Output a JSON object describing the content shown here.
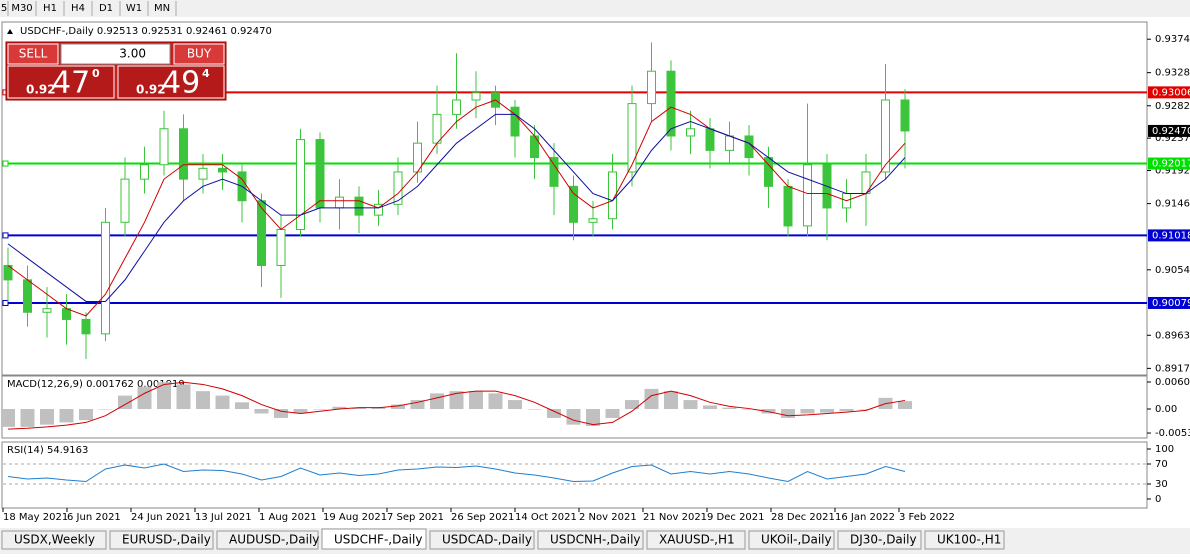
{
  "toolbar": {
    "timeframes": [
      "5",
      "M30",
      "H1",
      "H4",
      "D1",
      "W1",
      "MN"
    ]
  },
  "trade_panel": {
    "sell": "SELL",
    "buy": "BUY",
    "lot": "3.00",
    "sell_price": {
      "big": "0.92",
      "pips": "47",
      "frac": "0"
    },
    "buy_price": {
      "big": "0.92",
      "pips": "49",
      "frac": "4"
    }
  },
  "tabs": [
    "USDX,Weekly",
    "EURUSD-,Daily",
    "AUDUSD-,Daily",
    "USDCHF-,Daily",
    "USDCAD-,Daily",
    "USDCNH-,Daily",
    "XAUUSD-,H1",
    "UKOil-,Daily",
    "DJ30-,Daily",
    "UK100-,H1"
  ],
  "active_tab": 3,
  "chart_data": {
    "type": "candlestick",
    "title": "USDCHF-,Daily  0.92513 0.92531 0.92461 0.92470",
    "x_labels": [
      "18 May 2021",
      "6 Jun 2021",
      "24 Jun 2021",
      "13 Jul 2021",
      "1 Aug 2021",
      "19 Aug 2021",
      "7 Sep 2021",
      "26 Sep 2021",
      "14 Oct 2021",
      "2 Nov 2021",
      "21 Nov 2021",
      "9 Dec 2021",
      "28 Dec 2021",
      "16 Jan 2022",
      "3 Feb 2022"
    ],
    "ylim": [
      0.89078,
      0.93984
    ],
    "yticks": [
      {
        "value": 0.93745,
        "label": "0.93745"
      },
      {
        "value": 0.9328,
        "label": "0.93280"
      },
      {
        "value": 0.9282,
        "label": "0.92820"
      },
      {
        "value": 0.9237,
        "label": "0.92370"
      },
      {
        "value": 0.9192,
        "label": "0.91920"
      },
      {
        "value": 0.9146,
        "label": "0.91460"
      },
      {
        "value": 0.9054,
        "label": "0.90540"
      },
      {
        "value": 0.8963,
        "label": "0.89630"
      },
      {
        "value": 0.8917,
        "label": "0.89170"
      }
    ],
    "candle_color": "#3cc43c",
    "candles": {
      "open": [
        0.906,
        0.904,
        0.8995,
        0.9,
        0.8985,
        0.8965,
        0.912,
        0.918,
        0.92,
        0.925,
        0.918,
        0.9195,
        0.919,
        0.915,
        0.906,
        0.911,
        0.9235,
        0.914,
        0.9155,
        0.913,
        0.9145,
        0.919,
        0.923,
        0.927,
        0.929,
        0.93,
        0.928,
        0.924,
        0.921,
        0.917,
        0.912,
        0.9125,
        0.919,
        0.9285,
        0.933,
        0.924,
        0.925,
        0.922,
        0.924,
        0.921,
        0.917,
        0.9115,
        0.92,
        0.914,
        0.916,
        0.919,
        0.929
      ],
      "high": [
        0.9085,
        0.906,
        0.903,
        0.902,
        0.8995,
        0.914,
        0.921,
        0.9225,
        0.9275,
        0.927,
        0.9215,
        0.9215,
        0.92,
        0.916,
        0.913,
        0.925,
        0.9245,
        0.918,
        0.917,
        0.9165,
        0.921,
        0.926,
        0.931,
        0.9355,
        0.933,
        0.931,
        0.929,
        0.9255,
        0.923,
        0.9185,
        0.915,
        0.9215,
        0.931,
        0.937,
        0.9345,
        0.9275,
        0.9265,
        0.926,
        0.9255,
        0.9225,
        0.918,
        0.9285,
        0.9215,
        0.918,
        0.9215,
        0.934,
        0.9305
      ],
      "low": [
        0.901,
        0.8975,
        0.896,
        0.895,
        0.893,
        0.8955,
        0.91,
        0.916,
        0.9185,
        0.915,
        0.916,
        0.9165,
        0.912,
        0.903,
        0.9015,
        0.91,
        0.912,
        0.911,
        0.9105,
        0.9115,
        0.913,
        0.9175,
        0.9215,
        0.925,
        0.9265,
        0.9255,
        0.921,
        0.918,
        0.913,
        0.9095,
        0.91,
        0.911,
        0.917,
        0.926,
        0.922,
        0.9215,
        0.9195,
        0.92,
        0.9185,
        0.914,
        0.91,
        0.91,
        0.9095,
        0.912,
        0.9115,
        0.918,
        0.9195
      ],
      "close": [
        0.904,
        0.8995,
        0.9,
        0.8985,
        0.8965,
        0.912,
        0.918,
        0.92,
        0.925,
        0.918,
        0.9195,
        0.919,
        0.915,
        0.906,
        0.911,
        0.9235,
        0.914,
        0.9155,
        0.913,
        0.9145,
        0.919,
        0.923,
        0.927,
        0.929,
        0.93,
        0.928,
        0.924,
        0.921,
        0.917,
        0.912,
        0.9125,
        0.919,
        0.9285,
        0.933,
        0.924,
        0.925,
        0.922,
        0.924,
        0.921,
        0.917,
        0.9115,
        0.92,
        0.914,
        0.916,
        0.919,
        0.929,
        0.9247
      ]
    },
    "ma_fast": {
      "color": "#d00000",
      "values": [
        0.906,
        0.904,
        0.902,
        0.9,
        0.899,
        0.902,
        0.907,
        0.912,
        0.918,
        0.92,
        0.92,
        0.92,
        0.918,
        0.914,
        0.911,
        0.913,
        0.915,
        0.915,
        0.915,
        0.914,
        0.916,
        0.919,
        0.923,
        0.926,
        0.928,
        0.929,
        0.927,
        0.924,
        0.92,
        0.916,
        0.914,
        0.915,
        0.92,
        0.926,
        0.928,
        0.927,
        0.925,
        0.924,
        0.923,
        0.92,
        0.917,
        0.916,
        0.916,
        0.915,
        0.916,
        0.92,
        0.923
      ]
    },
    "ma_slow": {
      "color": "#1010a0",
      "values": [
        0.909,
        0.907,
        0.905,
        0.903,
        0.901,
        0.901,
        0.904,
        0.908,
        0.912,
        0.915,
        0.917,
        0.918,
        0.917,
        0.915,
        0.913,
        0.913,
        0.914,
        0.914,
        0.914,
        0.914,
        0.915,
        0.917,
        0.92,
        0.923,
        0.925,
        0.927,
        0.927,
        0.925,
        0.922,
        0.919,
        0.916,
        0.915,
        0.918,
        0.922,
        0.925,
        0.926,
        0.925,
        0.924,
        0.923,
        0.921,
        0.919,
        0.918,
        0.917,
        0.916,
        0.916,
        0.918,
        0.921
      ]
    },
    "levels": [
      {
        "value": 0.93006,
        "color": "#e00000"
      },
      {
        "value": 0.92017,
        "color": "#00e000"
      },
      {
        "value": 0.91018,
        "color": "#0000d0"
      },
      {
        "value": 0.90079,
        "color": "#0000d0"
      }
    ],
    "current_price": {
      "value": 0.9247,
      "label": "0.92470"
    },
    "macd": {
      "label": "MACD(12,26,9) 0.001762 0.001919",
      "ylim": [
        -0.00649,
        0.00739
      ],
      "yticks": [
        0.006045,
        {
          "value": 0,
          "label": "0.00"
        },
        -0.00538
      ],
      "hist_color": "#c0c0c0",
      "signal_color": "#d00000",
      "histogram": [
        -0.004,
        -0.004,
        -0.0035,
        -0.003,
        -0.0025,
        0,
        0.003,
        0.005,
        0.006,
        0.0055,
        0.004,
        0.003,
        0.0015,
        -0.001,
        -0.002,
        -0.001,
        0,
        0.0005,
        0.0003,
        0.0003,
        0.001,
        0.002,
        0.0035,
        0.004,
        0.004,
        0.0035,
        0.002,
        0,
        -0.002,
        -0.0035,
        -0.0038,
        -0.002,
        0.002,
        0.0045,
        0.004,
        0.002,
        0.0008,
        0.0003,
        0,
        -0.001,
        -0.002,
        -0.001,
        -0.0008,
        -0.0005,
        0,
        0.0025,
        0.001762
      ],
      "signal": [
        -0.0045,
        -0.0043,
        -0.004,
        -0.0036,
        -0.003,
        -0.0015,
        0.001,
        0.0035,
        0.0055,
        0.006,
        0.0055,
        0.0045,
        0.003,
        0.001,
        -0.0005,
        -0.001,
        -0.0005,
        0,
        0.0003,
        0.0003,
        0.0007,
        0.0015,
        0.0025,
        0.0035,
        0.004,
        0.004,
        0.003,
        0.0015,
        -0.0005,
        -0.0025,
        -0.0035,
        -0.003,
        -0.0005,
        0.003,
        0.004,
        0.003,
        0.0015,
        0.0006,
        0.0001,
        -0.0006,
        -0.0015,
        -0.0013,
        -0.001,
        -0.0007,
        -0.0003,
        0.0012,
        0.001919
      ]
    },
    "rsi": {
      "label": "RSI(14) 54.9163",
      "ylim": [
        -18,
        114
      ],
      "yticks": [
        100,
        70,
        30,
        0
      ],
      "levels": [
        70,
        30
      ],
      "color": "#1e7fd0",
      "values": [
        45,
        40,
        42,
        38,
        35,
        60,
        68,
        62,
        70,
        55,
        58,
        57,
        50,
        38,
        45,
        62,
        48,
        52,
        47,
        50,
        58,
        60,
        64,
        63,
        66,
        60,
        52,
        48,
        42,
        35,
        36,
        52,
        65,
        68,
        50,
        55,
        50,
        55,
        50,
        42,
        35,
        55,
        40,
        45,
        50,
        65,
        54.9163
      ]
    }
  }
}
